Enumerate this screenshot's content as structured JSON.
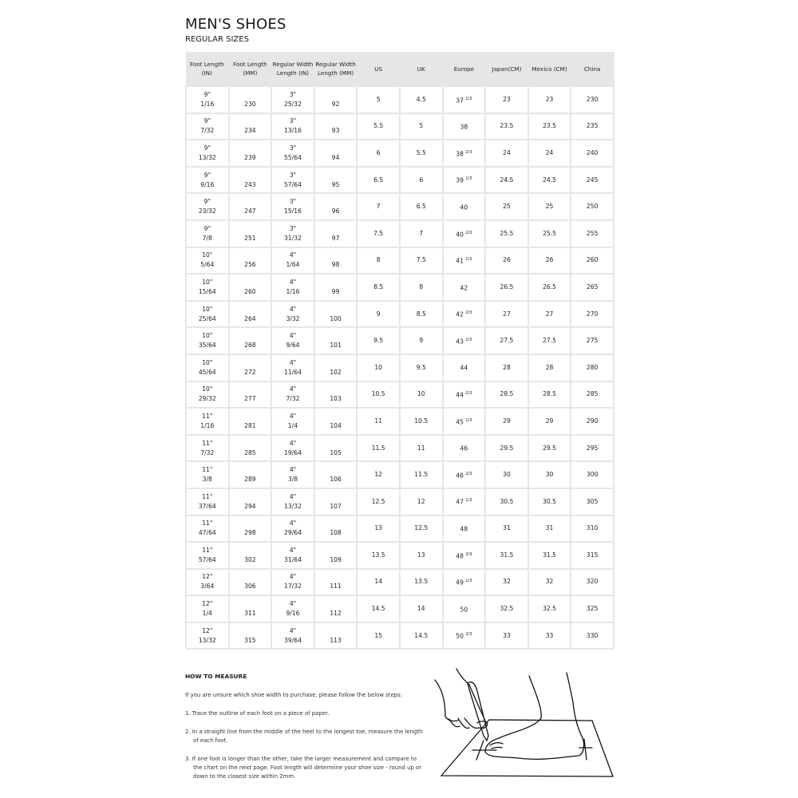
{
  "title": "MEN'S SHOES",
  "subtitle": "REGULAR SIZES",
  "table": {
    "headers": [
      "Foot Length (IN)",
      "Foot Length (MM)",
      "Regular Width Length (IN)",
      "Regular Width Length (MM)",
      "US",
      "UK",
      "Europe",
      "Japan(CM)",
      "Mexico (CM)",
      "China"
    ],
    "rows": [
      {
        "fl_in": "9\"",
        "fl_frac": "1/16",
        "fl_mm": "230",
        "w_in": "3\"",
        "w_frac": "25/32",
        "w_mm": "92",
        "us": "5",
        "uk": "4.5",
        "eu": "37",
        "eu_frac": "1/3",
        "jp": "23",
        "mx": "23",
        "cn": "230"
      },
      {
        "fl_in": "9\"",
        "fl_frac": "7/32",
        "fl_mm": "234",
        "w_in": "3\"",
        "w_frac": "13/16",
        "w_mm": "93",
        "us": "5.5",
        "uk": "5",
        "eu": "38",
        "eu_frac": "",
        "jp": "23.5",
        "mx": "23.5",
        "cn": "235"
      },
      {
        "fl_in": "9\"",
        "fl_frac": "13/32",
        "fl_mm": "239",
        "w_in": "3\"",
        "w_frac": "55/64",
        "w_mm": "94",
        "us": "6",
        "uk": "5.5",
        "eu": "38",
        "eu_frac": "2/3",
        "jp": "24",
        "mx": "24",
        "cn": "240"
      },
      {
        "fl_in": "9\"",
        "fl_frac": "9/16",
        "fl_mm": "243",
        "w_in": "3\"",
        "w_frac": "57/64",
        "w_mm": "95",
        "us": "6.5",
        "uk": "6",
        "eu": "39",
        "eu_frac": "1/3",
        "jp": "24.5",
        "mx": "24.5",
        "cn": "245"
      },
      {
        "fl_in": "9\"",
        "fl_frac": "23/32",
        "fl_mm": "247",
        "w_in": "3\"",
        "w_frac": "15/16",
        "w_mm": "96",
        "us": "7",
        "uk": "6.5",
        "eu": "40",
        "eu_frac": "",
        "jp": "25",
        "mx": "25",
        "cn": "250"
      },
      {
        "fl_in": "9\"",
        "fl_frac": "7/8",
        "fl_mm": "251",
        "w_in": "3\"",
        "w_frac": "31/32",
        "w_mm": "97",
        "us": "7.5",
        "uk": "7",
        "eu": "40",
        "eu_frac": "2/3",
        "jp": "25.5",
        "mx": "25.5",
        "cn": "255"
      },
      {
        "fl_in": "10\"",
        "fl_frac": "5/64",
        "fl_mm": "256",
        "w_in": "4\"",
        "w_frac": "1/64",
        "w_mm": "98",
        "us": "8",
        "uk": "7.5",
        "eu": "41",
        "eu_frac": "1/3",
        "jp": "26",
        "mx": "26",
        "cn": "260"
      },
      {
        "fl_in": "10\"",
        "fl_frac": "15/64",
        "fl_mm": "260",
        "w_in": "4\"",
        "w_frac": "1/16",
        "w_mm": "99",
        "us": "8.5",
        "uk": "8",
        "eu": "42",
        "eu_frac": "",
        "jp": "26.5",
        "mx": "26.5",
        "cn": "265"
      },
      {
        "fl_in": "10\"",
        "fl_frac": "25/64",
        "fl_mm": "264",
        "w_in": "4\"",
        "w_frac": "3/32",
        "w_mm": "100",
        "us": "9",
        "uk": "8.5",
        "eu": "42",
        "eu_frac": "2/3",
        "jp": "27",
        "mx": "27",
        "cn": "270"
      },
      {
        "fl_in": "10\"",
        "fl_frac": "35/64",
        "fl_mm": "268",
        "w_in": "4\"",
        "w_frac": "9/64",
        "w_mm": "101",
        "us": "9.5",
        "uk": "9",
        "eu": "43",
        "eu_frac": "1/3",
        "jp": "27.5",
        "mx": "27.5",
        "cn": "275"
      },
      {
        "fl_in": "10\"",
        "fl_frac": "45/64",
        "fl_mm": "272",
        "w_in": "4\"",
        "w_frac": "11/64",
        "w_mm": "102",
        "us": "10",
        "uk": "9.5",
        "eu": "44",
        "eu_frac": "",
        "jp": "28",
        "mx": "28",
        "cn": "280"
      },
      {
        "fl_in": "10\"",
        "fl_frac": "29/32",
        "fl_mm": "277",
        "w_in": "4\"",
        "w_frac": "7/32",
        "w_mm": "103",
        "us": "10.5",
        "uk": "10",
        "eu": "44",
        "eu_frac": "2/3",
        "jp": "28.5",
        "mx": "28.5",
        "cn": "285"
      },
      {
        "fl_in": "11\"",
        "fl_frac": "1/16",
        "fl_mm": "281",
        "w_in": "4\"",
        "w_frac": "1/4",
        "w_mm": "104",
        "us": "11",
        "uk": "10.5",
        "eu": "45",
        "eu_frac": "1/3",
        "jp": "29",
        "mx": "29",
        "cn": "290"
      },
      {
        "fl_in": "11\"",
        "fl_frac": "7/32",
        "fl_mm": "285",
        "w_in": "4\"",
        "w_frac": "19/64",
        "w_mm": "105",
        "us": "11.5",
        "uk": "11",
        "eu": "46",
        "eu_frac": "",
        "jp": "29.5",
        "mx": "29.5",
        "cn": "295"
      },
      {
        "fl_in": "11\"",
        "fl_frac": "3/8",
        "fl_mm": "289",
        "w_in": "4\"",
        "w_frac": "3/8",
        "w_mm": "106",
        "us": "12",
        "uk": "11.5",
        "eu": "46",
        "eu_frac": "2/3",
        "jp": "30",
        "mx": "30",
        "cn": "300"
      },
      {
        "fl_in": "11\"",
        "fl_frac": "37/64",
        "fl_mm": "294",
        "w_in": "4\"",
        "w_frac": "13/32",
        "w_mm": "107",
        "us": "12.5",
        "uk": "12",
        "eu": "47",
        "eu_frac": "1/3",
        "jp": "30.5",
        "mx": "30.5",
        "cn": "305"
      },
      {
        "fl_in": "11\"",
        "fl_frac": "47/64",
        "fl_mm": "298",
        "w_in": "4\"",
        "w_frac": "29/64",
        "w_mm": "108",
        "us": "13",
        "uk": "12.5",
        "eu": "48",
        "eu_frac": "",
        "jp": "31",
        "mx": "31",
        "cn": "310"
      },
      {
        "fl_in": "11\"",
        "fl_frac": "57/64",
        "fl_mm": "302",
        "w_in": "4\"",
        "w_frac": "31/64",
        "w_mm": "109",
        "us": "13.5",
        "uk": "13",
        "eu": "48",
        "eu_frac": "2/3",
        "jp": "31.5",
        "mx": "31.5",
        "cn": "315"
      },
      {
        "fl_in": "12\"",
        "fl_frac": "3/64",
        "fl_mm": "306",
        "w_in": "4\"",
        "w_frac": "17/32",
        "w_mm": "111",
        "us": "14",
        "uk": "13.5",
        "eu": "49",
        "eu_frac": "1/3",
        "jp": "32",
        "mx": "32",
        "cn": "320"
      },
      {
        "fl_in": "12\"",
        "fl_frac": "1/4",
        "fl_mm": "311",
        "w_in": "4\"",
        "w_frac": "9/16",
        "w_mm": "112",
        "us": "14.5",
        "uk": "14",
        "eu": "50",
        "eu_frac": "",
        "jp": "32.5",
        "mx": "32.5",
        "cn": "325"
      },
      {
        "fl_in": "12\"",
        "fl_frac": "13/32",
        "fl_mm": "315",
        "w_in": "4\"",
        "w_frac": "39/64",
        "w_mm": "113",
        "us": "15",
        "uk": "14.5",
        "eu": "50",
        "eu_frac": "2/3",
        "jp": "33",
        "mx": "33",
        "cn": "330"
      }
    ]
  },
  "how_to_measure": {
    "heading": "HOW TO MEASURE",
    "intro": "If you are unsure which shoe width to purchase, please follow the below steps:",
    "steps": [
      "1. Trace the outline of each foot on a piece of paper.",
      "2. In a straight line from the middle of the heel to the longest toe, measure the length of each foot.",
      "3. If one foot is longer than the other, take the larger measurement and compare to the chart on the next page. Foot length will determine your shoe size - round up or down to the closest size within 2mm."
    ]
  },
  "illustration": {
    "icon": "foot-tracing-illustration"
  },
  "colors": {
    "header_bg": "#e6e6e6",
    "grid": "#e6e6e6",
    "text": "#222222"
  }
}
